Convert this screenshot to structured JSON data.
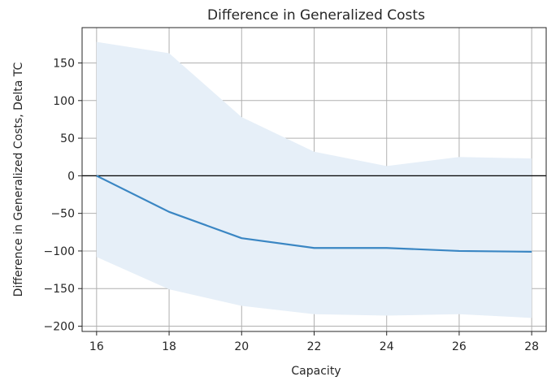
{
  "chart_data": {
    "type": "line",
    "title": "Difference in Generalized Costs",
    "xlabel": "Capacity",
    "ylabel": "Difference in Generalized Costs, Delta TC",
    "x": [
      16,
      18,
      20,
      22,
      24,
      26,
      28
    ],
    "series": [
      {
        "values": [
          0,
          -48,
          -83,
          -96,
          -96,
          -100,
          -101
        ],
        "upper": [
          178,
          163,
          78,
          32,
          13,
          25,
          23
        ],
        "lower": [
          -108,
          -151,
          -173,
          -184,
          -186,
          -184,
          -189
        ],
        "color": "#3a86c3",
        "band_color": "#e6eff8"
      }
    ],
    "reference_line": {
      "y": 0,
      "color": "#000000"
    },
    "xticks": [
      16,
      18,
      20,
      22,
      24,
      26,
      28
    ],
    "yticks": [
      150,
      100,
      50,
      0,
      -50,
      -100,
      -150,
      -200
    ],
    "xlim": [
      15.6,
      28.4
    ],
    "ylim": [
      -207,
      197
    ],
    "grid": true,
    "legend": "none"
  }
}
